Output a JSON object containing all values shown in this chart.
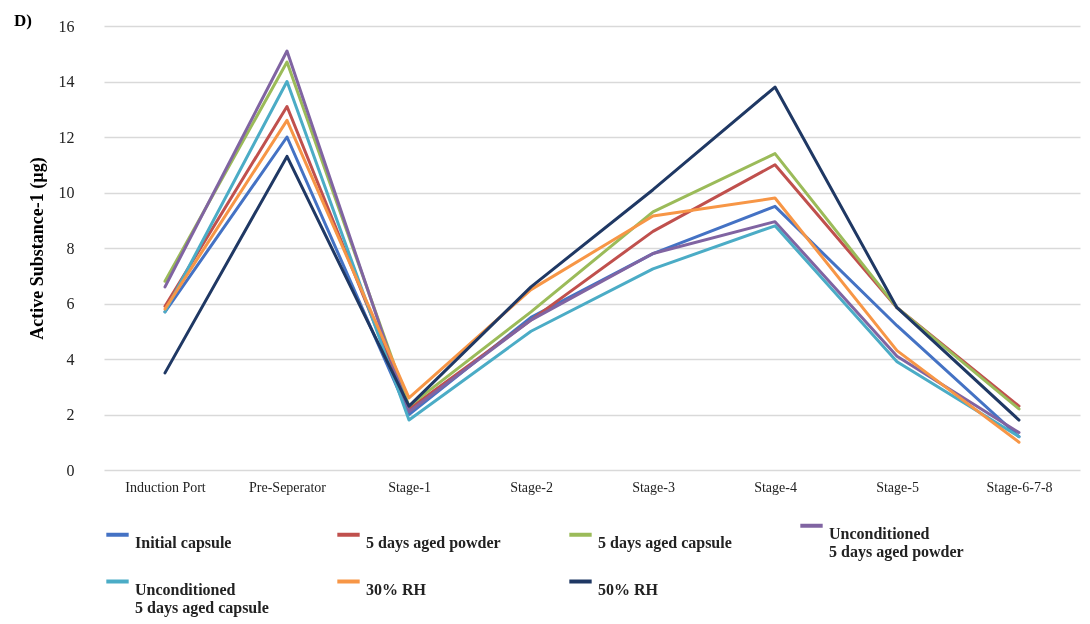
{
  "chart_data": {
    "type": "line",
    "title": "D)",
    "ylabel": "Active Substance-1 (µg)",
    "categories": [
      "Induction Port",
      "Pre-Seperator",
      "Stage-1",
      "Stage-2",
      "Stage-3",
      "Stage-4",
      "Stage-5",
      "Stage-6-7-8"
    ],
    "ylim": [
      0,
      16
    ],
    "yticks": [
      0,
      2,
      4,
      6,
      8,
      10,
      12,
      14,
      16
    ],
    "grid": "y",
    "legend": "bottom",
    "marker": "none",
    "line_style": "solid",
    "series": [
      {
        "name": "Initial capsule",
        "color": "#4472c4",
        "values": [
          5.7,
          12.0,
          2.0,
          5.5,
          7.8,
          9.5,
          5.2,
          1.2
        ]
      },
      {
        "name": "5 days aged powder",
        "color": "#c0504d",
        "values": [
          5.9,
          13.1,
          2.2,
          5.4,
          8.6,
          11.0,
          5.85,
          2.3
        ]
      },
      {
        "name": "5 days aged capsule",
        "color": "#9bbb59",
        "values": [
          6.8,
          14.7,
          2.3,
          5.7,
          9.3,
          11.4,
          5.85,
          2.2
        ]
      },
      {
        "name": "Unconditioned\n5 days aged powder",
        "color": "#8064a2",
        "values": [
          6.6,
          15.1,
          2.1,
          5.4,
          7.8,
          8.95,
          4.1,
          1.35
        ]
      },
      {
        "name": "Unconditioned\n5 days aged capsule",
        "color": "#4bacc6",
        "values": [
          5.7,
          14.0,
          1.8,
          5.0,
          7.25,
          8.8,
          3.9,
          1.2
        ]
      },
      {
        "name": "30% RH",
        "color": "#f79646",
        "values": [
          5.8,
          12.6,
          2.6,
          6.5,
          9.15,
          9.8,
          4.3,
          1.0
        ]
      },
      {
        "name": "50% RH",
        "color": "#1f3864",
        "values": [
          3.5,
          11.3,
          2.3,
          6.6,
          10.1,
          13.8,
          5.85,
          1.8
        ]
      }
    ]
  }
}
